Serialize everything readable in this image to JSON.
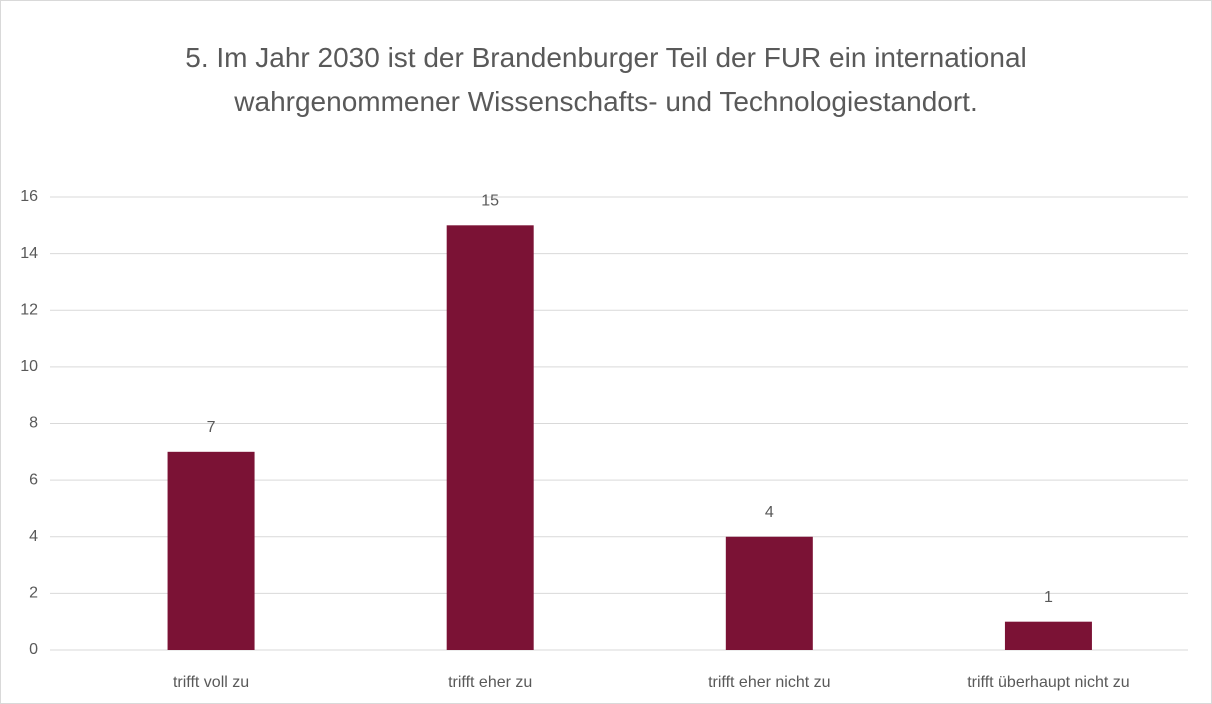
{
  "chart_data": {
    "type": "bar",
    "title": "5. Im Jahr 2030 ist der Brandenburger Teil der FUR ein international wahrgenommener Wissenschafts- und Technologiestandort.",
    "categories": [
      "trifft voll zu",
      "trifft eher zu",
      "trifft eher nicht zu",
      "trifft überhaupt nicht zu"
    ],
    "values": [
      7,
      15,
      4,
      1
    ],
    "color": "#7b1235",
    "ylim": [
      0,
      16
    ],
    "yticks": [
      0,
      2,
      4,
      6,
      8,
      10,
      12,
      14,
      16
    ],
    "grid": true
  }
}
